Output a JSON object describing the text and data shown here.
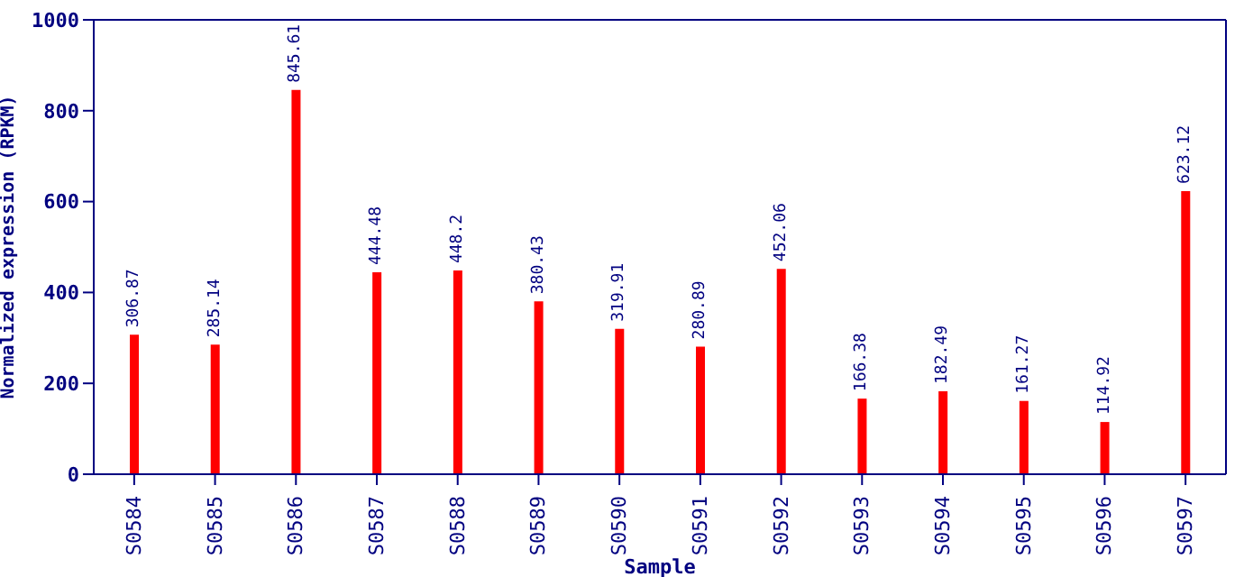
{
  "chart_data": {
    "type": "bar",
    "xlabel": "Sample",
    "ylabel": "Normalized expression (RPKM)",
    "categories": [
      "S0584",
      "S0585",
      "S0586",
      "S0587",
      "S0588",
      "S0589",
      "S0590",
      "S0591",
      "S0592",
      "S0593",
      "S0594",
      "S0595",
      "S0596",
      "S0597"
    ],
    "values": [
      306.87,
      285.14,
      845.61,
      444.48,
      448.2,
      380.43,
      319.91,
      280.89,
      452.06,
      166.38,
      182.49,
      161.27,
      114.92,
      623.12
    ],
    "value_labels": [
      "306.87",
      "285.14",
      "845.61",
      "444.48",
      "448.2",
      "380.43",
      "319.91",
      "280.89",
      "452.06",
      "166.38",
      "182.49",
      "161.27",
      "114.92",
      "623.12"
    ],
    "color": "#ff0000",
    "ylim": [
      0,
      1000
    ],
    "yticks": [
      0,
      200,
      400,
      600,
      800,
      1000
    ],
    "grid": false,
    "legend": false
  }
}
